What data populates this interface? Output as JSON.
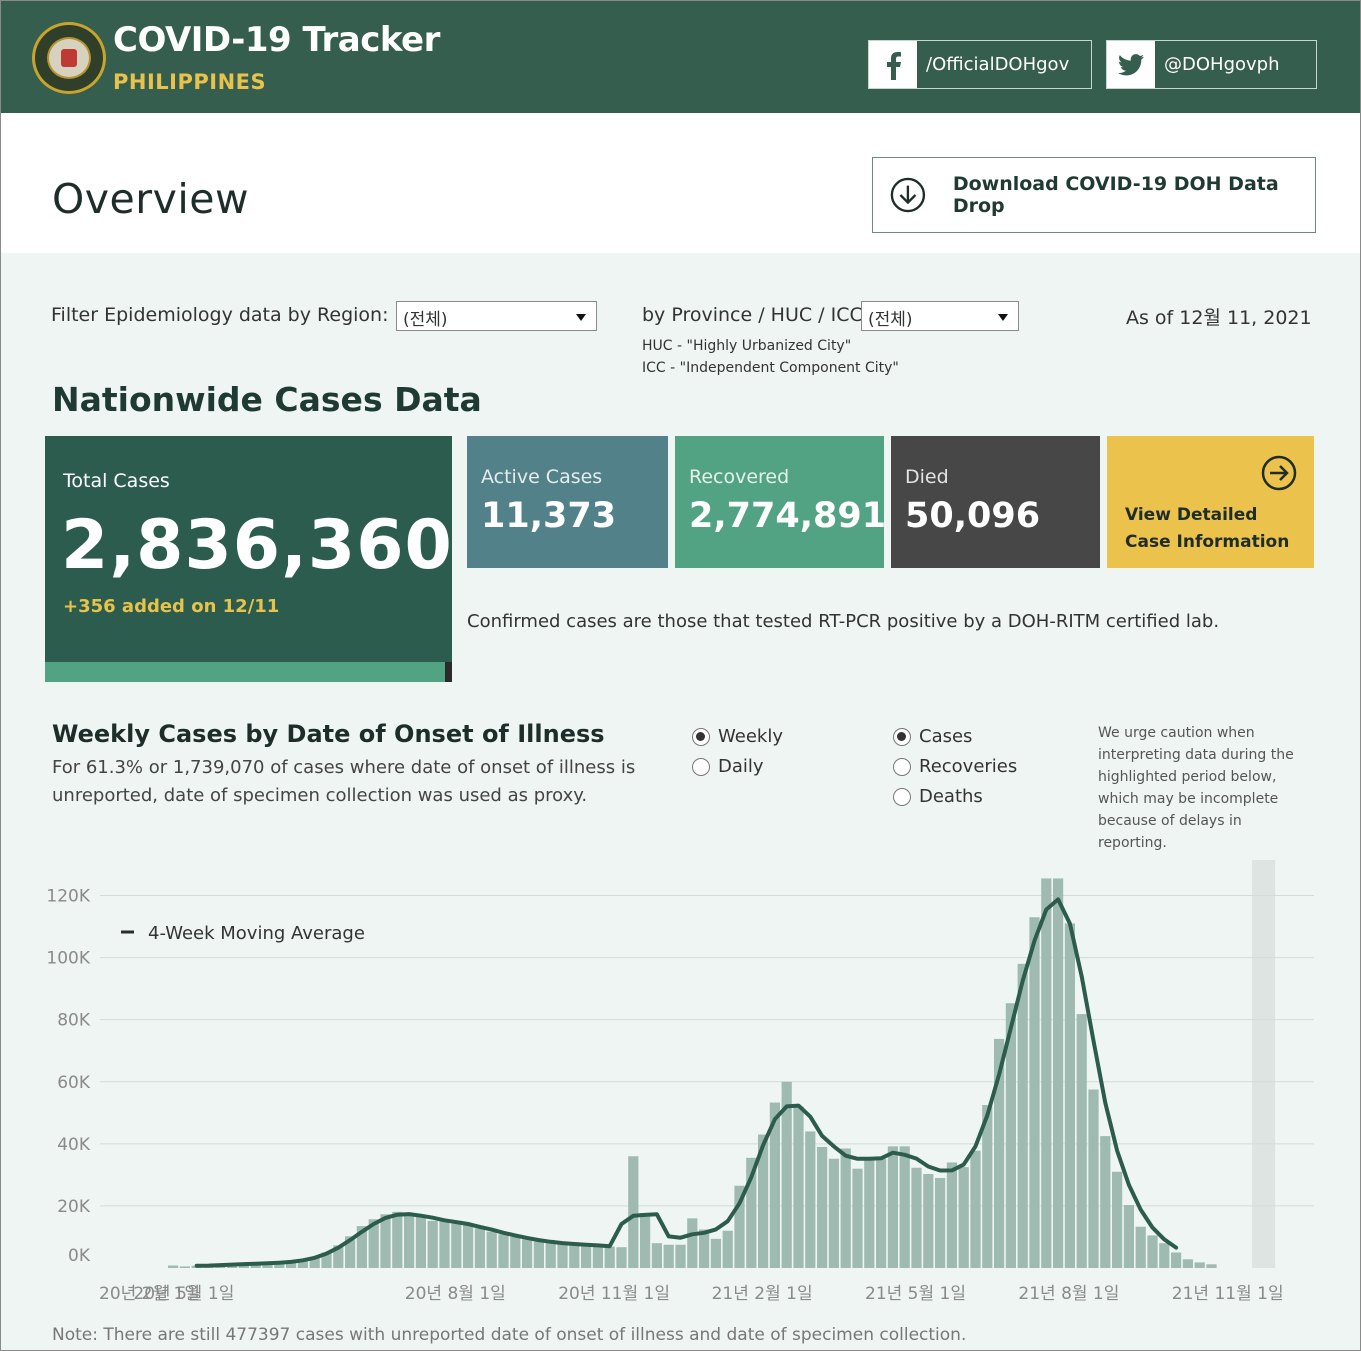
{
  "header": {
    "title": "COVID-19 Tracker",
    "subtitle": "PHILIPPINES",
    "facebook": "/OfficialDOHgov",
    "twitter": "@DOHgovph"
  },
  "overview": {
    "title": "Overview",
    "download_label": "Download COVID-19 DOH Data Drop"
  },
  "filters": {
    "region_label": "Filter Epidemiology data by Region:",
    "region_value": "(전체)",
    "province_label": "by Province / HUC / ICC:",
    "province_value": "(전체)",
    "huc_note": "HUC - \"Highly Urbanized City\"",
    "icc_note": "ICC - \"Independent Component City\"",
    "as_of": "As of 12월 11, 2021"
  },
  "nationwide": {
    "title": "Nationwide Cases Data",
    "total_label": "Total Cases",
    "total_value": "2,836,360",
    "total_added": "+356 added on 12/11",
    "active_label": "Active Cases",
    "active_value": "11,373",
    "recovered_label": "Recovered",
    "recovered_value": "2,774,891",
    "died_label": "Died",
    "died_value": "50,096",
    "view_label": "View Detailed Case Information",
    "confirmed_note": "Confirmed cases are those that tested RT-PCR positive by a DOH-RITM certified lab."
  },
  "weekly": {
    "title": "Weekly Cases by Date of Onset of Illness",
    "description": "For 61.3% or 1,739,070 of cases where date of onset of illness is unreported, date of specimen collection was used as proxy.",
    "period_options": [
      "Weekly",
      "Daily"
    ],
    "period_selected": "Weekly",
    "metric_options": [
      "Cases",
      "Recoveries",
      "Deaths"
    ],
    "metric_selected": "Cases",
    "caution": "We urge caution when interpreting data during the highlighted period below, which may be incomplete because of delays in reporting.",
    "footnote": "Note: There are still 477397 cases with unreported date of onset of illness and date of specimen collection."
  },
  "colors": {
    "header": "#355e4f",
    "total_card": "#2b5c4d",
    "active_card": "#52818a",
    "recovered_card": "#52a383",
    "died_card": "#474747",
    "view_card": "#ebc24b",
    "bar": "#9fbbb1",
    "line": "#2b5c4d"
  },
  "icons": {
    "facebook": "facebook-icon",
    "twitter": "twitter-icon",
    "download": "download-circle-icon",
    "view": "arrow-right-circle-icon",
    "seal": "doh-seal-logo"
  },
  "chart_data": {
    "type": "bar",
    "title": "Weekly Cases by Date of Onset of Illness",
    "ylim": [
      0,
      125000
    ],
    "y_ticks": [
      0,
      20000,
      40000,
      60000,
      80000,
      100000,
      120000
    ],
    "y_tick_labels": [
      "0K",
      "20K",
      "40K",
      "60K",
      "80K",
      "100K",
      "120K"
    ],
    "x_tick_labels": [
      "20년 2월 1일",
      "20년 5월 1일",
      "20년 8월 1일",
      "20년 11월 1일",
      "21년 2월 1일",
      "21년 5월 1일",
      "21년 8월 1일",
      "21년 11월 1일"
    ],
    "x_tick_week_index": [
      0,
      3,
      26,
      39,
      52,
      65,
      78,
      91
    ],
    "legend": "4-Week Moving Average",
    "highlight_week_start": 92,
    "weekly_cases": [
      800,
      500,
      700,
      900,
      1000,
      1200,
      1300,
      1500,
      1600,
      1700,
      2000,
      2600,
      3600,
      5000,
      7300,
      10200,
      13500,
      15700,
      17300,
      18100,
      17600,
      16500,
      15200,
      15500,
      14300,
      14100,
      12800,
      11700,
      10900,
      10000,
      9300,
      8600,
      8000,
      7800,
      7700,
      7400,
      7100,
      6900,
      6700,
      36000,
      17700,
      8000,
      7500,
      7500,
      16000,
      12400,
      9400,
      12000,
      26500,
      35500,
      43000,
      53300,
      60000,
      52000,
      44000,
      39000,
      35200,
      38500,
      32000,
      35000,
      35200,
      39200,
      39200,
      32300,
      30300,
      29000,
      34000,
      32500,
      37800,
      52500,
      73800,
      85300,
      98000,
      113000,
      125500,
      125500,
      111000,
      81800,
      57500,
      42500,
      31000,
      20300,
      13300,
      10500,
      8000,
      5000,
      2800,
      1800,
      1200
    ]
  }
}
